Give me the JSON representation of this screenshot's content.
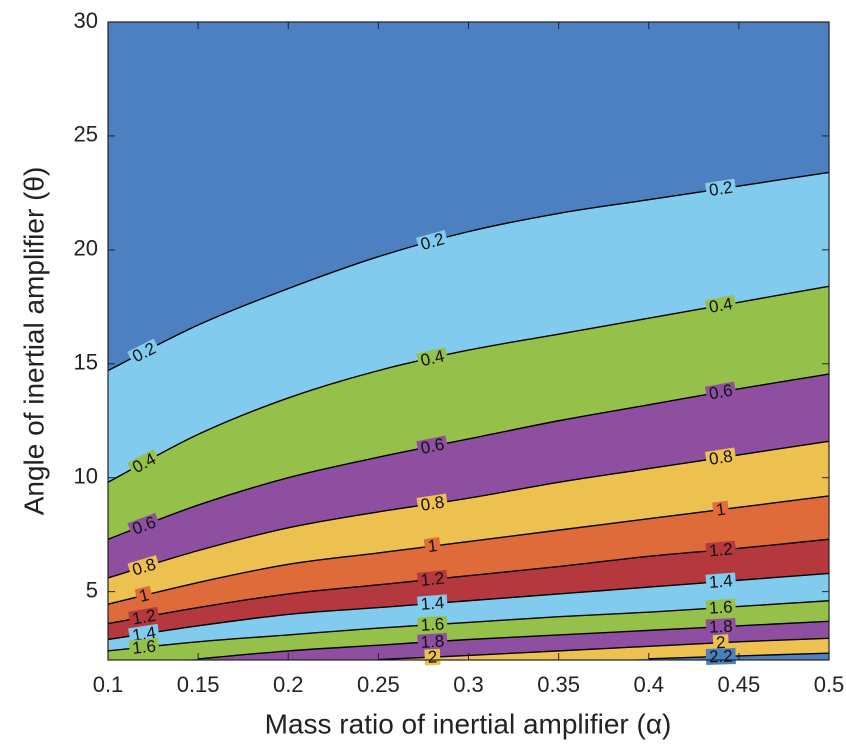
{
  "chart_data": {
    "type": "contour",
    "x_label": "Mass ratio of inertial amplifier (α)",
    "y_label": "Angle of inertial amplifier (θ)",
    "x": [
      0.1,
      0.15,
      0.2,
      0.25,
      0.3,
      0.35,
      0.4,
      0.45,
      0.5
    ],
    "background_color": "#4d80c1",
    "line_color": "#000000",
    "contours": [
      {
        "level": 0.2,
        "fill": "#81ccee",
        "values": [
          14.7,
          16.7,
          18.3,
          19.7,
          20.8,
          21.6,
          22.2,
          22.8,
          23.4
        ]
      },
      {
        "level": 0.4,
        "fill": "#95c14a",
        "values": [
          9.8,
          11.9,
          13.5,
          14.7,
          15.6,
          16.3,
          17.0,
          17.7,
          18.4
        ]
      },
      {
        "level": 0.6,
        "fill": "#8e4fa0",
        "values": [
          7.3,
          8.8,
          10.0,
          10.9,
          11.7,
          12.5,
          13.2,
          13.9,
          14.55
        ]
      },
      {
        "level": 0.8,
        "fill": "#ecc150",
        "values": [
          5.6,
          6.8,
          7.8,
          8.5,
          9.1,
          9.8,
          10.4,
          11.0,
          11.6
        ]
      },
      {
        "level": 1,
        "fill": "#e06b3a",
        "values": [
          4.45,
          5.4,
          6.2,
          6.7,
          7.2,
          7.7,
          8.2,
          8.7,
          9.2
        ]
      },
      {
        "level": 1.2,
        "fill": "#b6383f",
        "values": [
          3.6,
          4.3,
          4.9,
          5.3,
          5.7,
          6.1,
          6.55,
          6.9,
          7.3
        ]
      },
      {
        "level": 1.4,
        "fill": "#81ccee",
        "values": [
          2.9,
          3.5,
          4.0,
          4.3,
          4.6,
          4.9,
          5.2,
          5.5,
          5.8
        ]
      },
      {
        "level": 1.6,
        "fill": "#95c14a",
        "values": [
          2.4,
          2.8,
          3.1,
          3.4,
          3.65,
          3.9,
          4.1,
          4.35,
          4.6
        ]
      },
      {
        "level": 1.8,
        "fill": "#8e4fa0",
        "values": [
          null,
          2.05,
          2.4,
          2.65,
          2.9,
          3.1,
          3.3,
          3.5,
          3.7
        ]
      },
      {
        "level": 2,
        "fill": "#ecc150",
        "values": [
          null,
          null,
          null,
          2.02,
          2.2,
          2.4,
          2.6,
          2.8,
          2.95
        ]
      },
      {
        "level": 2.2,
        "fill": "#4d80c1",
        "values": [
          null,
          null,
          null,
          null,
          null,
          null,
          2.05,
          2.18,
          2.3
        ]
      }
    ],
    "xlim": [
      0.1,
      0.5
    ],
    "ylim": [
      2,
      30
    ],
    "xticks": [
      0.1,
      0.15,
      0.2,
      0.25,
      0.3,
      0.35,
      0.4,
      0.45,
      0.5
    ],
    "yticks": [
      5,
      10,
      15,
      20,
      25,
      30
    ]
  }
}
